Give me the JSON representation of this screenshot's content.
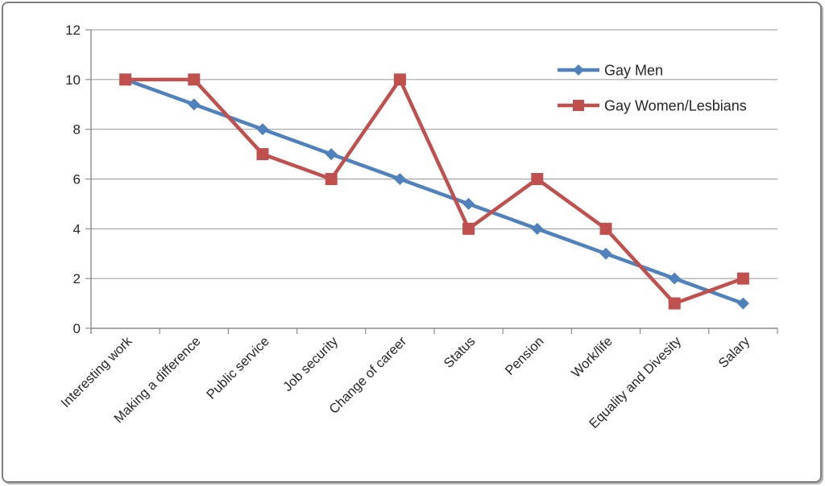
{
  "chart_data": {
    "type": "line",
    "categories": [
      "Interesting work",
      "Making a difference",
      "Public service",
      "Job security",
      "Change of career",
      "Status",
      "Pension",
      "Work/life",
      "Equality and Divesity",
      "Salary"
    ],
    "series": [
      {
        "name": "Gay Men",
        "values": [
          10,
          9,
          8,
          7,
          6,
          5,
          4,
          3,
          2,
          1
        ],
        "color": "#4F81BD",
        "marker": "diamond"
      },
      {
        "name": "Gay Women/Lesbians",
        "values": [
          10,
          10,
          7,
          6,
          10,
          4,
          6,
          4,
          1,
          2
        ],
        "color": "#C0504D",
        "marker": "square"
      }
    ],
    "title": "",
    "xlabel": "",
    "ylabel": "",
    "ylim": [
      0,
      12
    ],
    "yticks": [
      0,
      2,
      4,
      6,
      8,
      10,
      12
    ],
    "grid": true,
    "legend_position": "top-right-inside",
    "legend_entries": [
      "Gay Men",
      "Gay Women/Lesbians"
    ]
  },
  "colors": {
    "gridline": "#969696",
    "axis": "#8c8c8c",
    "tick_text": "#262626",
    "legend_text": "#262626",
    "frame_border": "#7f7f7f",
    "background": "#ffffff"
  }
}
